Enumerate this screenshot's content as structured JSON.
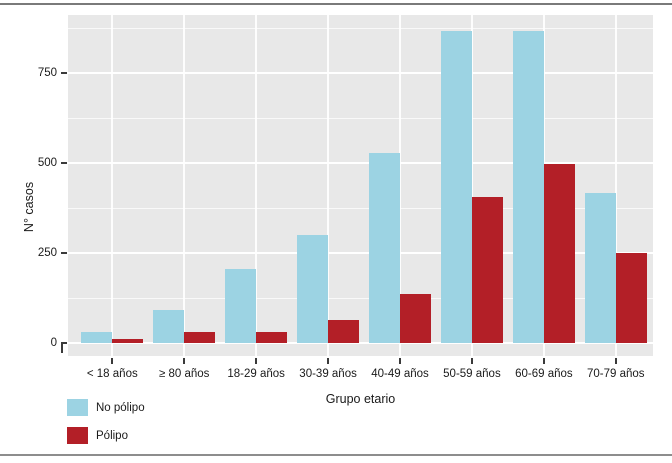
{
  "chart_data": {
    "type": "bar",
    "title": "",
    "categories": [
      "< 18 años",
      "≥ 80 años",
      "18-29 años",
      "30-39 años",
      "40-49 años",
      "50-59 años",
      "60-69 años",
      "70-79 años"
    ],
    "series": [
      {
        "name": "No pólipo",
        "color": "#9cd3e3",
        "values": [
          30,
          93,
          205,
          300,
          527,
          866,
          866,
          418
        ]
      },
      {
        "name": "Pólipo",
        "color": "#b31f27",
        "values": [
          10,
          31,
          31,
          63,
          137,
          406,
          498,
          250
        ]
      }
    ],
    "xlabel": "Grupo etario",
    "ylabel": "N° casos",
    "yticks": [
      0,
      250,
      500,
      750
    ],
    "yticks_minor": [
      125,
      375,
      625,
      875
    ],
    "ylim": [
      0,
      911
    ],
    "grid": "white major and minor horizontal lines plus vertical lines at category centers on gray panel",
    "legend_position": "bottom-left",
    "panel_background": "#e8e8e8"
  }
}
